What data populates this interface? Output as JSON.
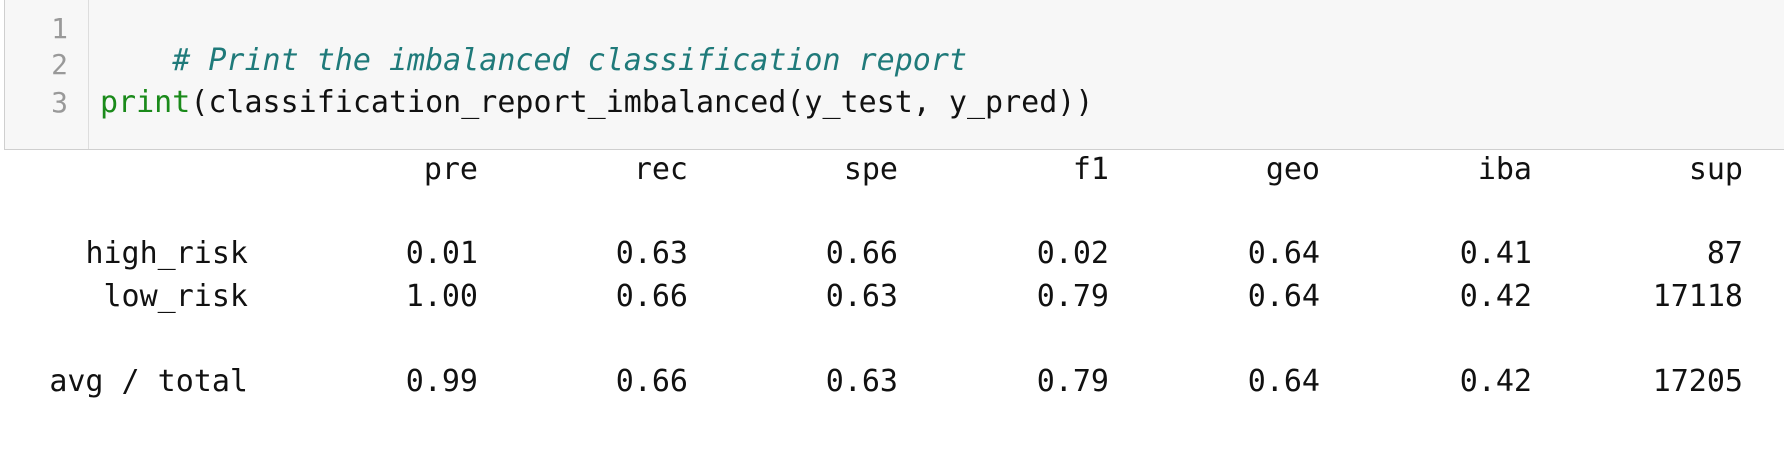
{
  "code_cell": {
    "lines": [
      {
        "number": "1",
        "parts": [
          {
            "kind": "comment",
            "text": "# Print the imbalanced classification report"
          }
        ]
      },
      {
        "number": "2",
        "parts": []
      },
      {
        "number": "3",
        "parts": [
          {
            "kind": "builtin",
            "text": "print"
          },
          {
            "kind": "plain",
            "text": "(classification_report_imbalanced(y_test, y_pred))"
          }
        ]
      }
    ]
  },
  "output": {
    "headers": [
      "pre",
      "rec",
      "spe",
      "f1",
      "geo",
      "iba",
      "sup"
    ],
    "rows": [
      {
        "label": "high_risk",
        "values": [
          "0.01",
          "0.63",
          "0.66",
          "0.02",
          "0.64",
          "0.41",
          "87"
        ]
      },
      {
        "label": "low_risk",
        "values": [
          "1.00",
          "0.66",
          "0.63",
          "0.79",
          "0.64",
          "0.42",
          "17118"
        ]
      },
      {
        "label": "avg / total",
        "values": [
          "0.99",
          "0.66",
          "0.63",
          "0.79",
          "0.64",
          "0.42",
          "17205"
        ]
      }
    ]
  },
  "colors": {
    "comment": "#1f7a7a",
    "builtin": "#1a8a1a",
    "text": "#111111",
    "line_number": "#999999",
    "cell_background": "#f7f7f7"
  }
}
